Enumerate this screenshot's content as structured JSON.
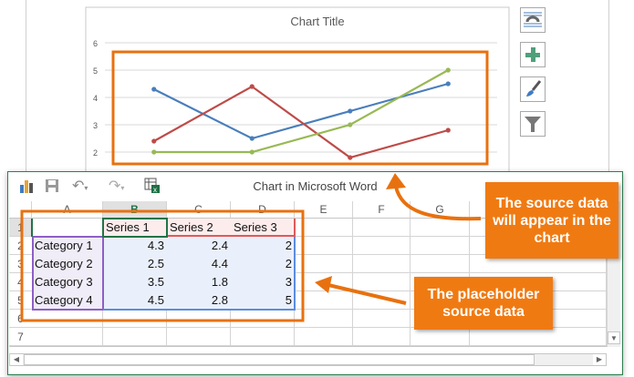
{
  "chart_data": {
    "type": "line",
    "title": "Chart Title",
    "categories": [
      "Category 1",
      "Category 2",
      "Category 3",
      "Category 4"
    ],
    "series": [
      {
        "name": "Series 1",
        "values": [
          4.3,
          2.5,
          3.5,
          4.5
        ],
        "color": "#4a7ebb"
      },
      {
        "name": "Series 2",
        "values": [
          2.4,
          4.4,
          1.8,
          2.8
        ],
        "color": "#be4b48"
      },
      {
        "name": "Series 3",
        "values": [
          2,
          2,
          3,
          5
        ],
        "color": "#98b954"
      }
    ],
    "y_ticks": [
      "6",
      "5",
      "4",
      "3",
      "2"
    ],
    "ylim": [
      2,
      6
    ],
    "grid": true
  },
  "chart_tools": [
    {
      "icon": "layout-options-icon"
    },
    {
      "icon": "chart-elements-plus-icon"
    },
    {
      "icon": "chart-styles-brush-icon"
    },
    {
      "icon": "chart-filters-funnel-icon"
    }
  ],
  "window": {
    "title": "Chart in Microsoft Word",
    "toolbar": [
      "chart-icon",
      "save-icon",
      "undo-icon",
      "redo-icon",
      "edit-data-in-excel-icon"
    ]
  },
  "sheet": {
    "columns": [
      "A",
      "B",
      "C",
      "D",
      "E",
      "F",
      "G"
    ],
    "rows": [
      "1",
      "2",
      "3",
      "4",
      "5",
      "6",
      "7"
    ],
    "header": [
      "",
      "Series 1",
      "Series 2",
      "Series 3"
    ],
    "data": [
      [
        "Category 1",
        "4.3",
        "2.4",
        "2"
      ],
      [
        "Category 2",
        "2.5",
        "4.4",
        "2"
      ],
      [
        "Category 3",
        "3.5",
        "1.8",
        "3"
      ],
      [
        "Category 4",
        "4.5",
        "2.8",
        "5"
      ]
    ]
  },
  "callouts": {
    "chart": "The source data will appear in the chart",
    "data": "The placeholder source data"
  },
  "colors": {
    "callout": "#f07a12",
    "window_border": "#2e7d4f"
  }
}
